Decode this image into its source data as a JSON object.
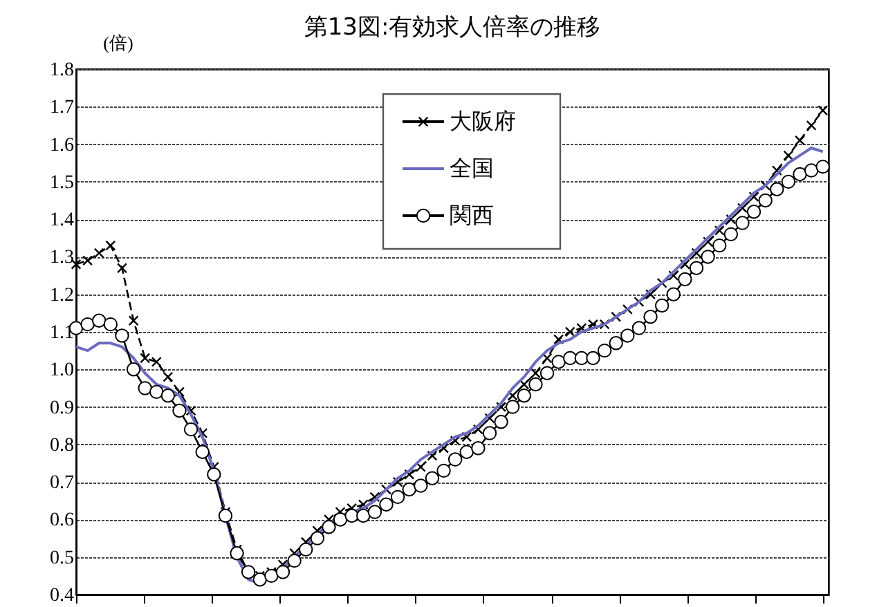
{
  "chart_data": {
    "type": "line",
    "title": "第13図:有効求人倍率の推移",
    "ylabel": "(倍)",
    "categories": [
      null,
      null,
      null,
      null,
      null,
      null,
      null,
      null,
      null,
      null,
      null,
      null,
      null,
      null,
      null,
      null,
      null,
      null,
      null,
      null,
      null,
      null,
      null,
      null,
      null,
      null,
      null,
      null,
      null,
      null,
      null,
      null,
      null,
      null,
      null,
      null,
      null,
      null,
      null,
      null,
      null,
      null,
      null,
      null,
      null,
      null,
      null,
      null,
      null,
      null,
      null,
      null,
      null,
      null,
      null,
      null,
      null,
      null,
      null,
      null,
      null,
      null,
      null,
      null,
      null,
      null
    ],
    "ylim": [
      0.4,
      1.8
    ],
    "yticks": [
      0.4,
      0.5,
      0.6,
      0.7,
      0.8,
      0.9,
      {
        "value": 1,
        "label": "1.0"
      },
      1.1,
      1.2,
      1.3,
      1.4,
      1.5,
      1.6,
      1.7,
      1.8
    ],
    "grid": "y",
    "legend": "top",
    "tick_labels": "y",
    "series": [
      {
        "name": "大阪府",
        "color": "#000000",
        "marker": "cross",
        "line_style": "dashed",
        "values": [
          1.28,
          1.29,
          1.31,
          1.33,
          1.27,
          1.13,
          1.03,
          1.02,
          0.98,
          0.94,
          0.89,
          0.83,
          0.74,
          0.62,
          0.52,
          0.46,
          0.45,
          0.46,
          0.48,
          0.51,
          0.54,
          0.57,
          0.6,
          0.62,
          0.63,
          0.64,
          0.66,
          0.68,
          0.7,
          0.72,
          0.74,
          0.77,
          0.79,
          0.81,
          0.82,
          0.84,
          0.87,
          0.9,
          0.93,
          0.96,
          0.99,
          1.03,
          1.08,
          1.1,
          1.11,
          1.12,
          1.12,
          1.14,
          1.16,
          1.18,
          1.2,
          1.23,
          1.25,
          1.28,
          1.31,
          1.34,
          1.37,
          1.4,
          1.43,
          1.46,
          1.49,
          1.53,
          1.57,
          1.61,
          1.65,
          1.69
        ]
      },
      {
        "name": "全国",
        "color": "#6b6bbf",
        "marker": "none",
        "line_style": "solid",
        "values": [
          1.06,
          1.05,
          1.07,
          1.07,
          1.06,
          1.03,
          0.99,
          0.96,
          0.95,
          0.93,
          0.88,
          0.82,
          0.73,
          0.61,
          0.5,
          0.44,
          0.43,
          0.45,
          0.47,
          0.5,
          0.53,
          0.56,
          0.59,
          0.61,
          0.62,
          0.63,
          0.65,
          0.68,
          0.71,
          0.73,
          0.76,
          0.78,
          0.8,
          0.82,
          0.83,
          0.85,
          0.88,
          0.91,
          0.95,
          0.98,
          1.02,
          1.05,
          1.07,
          1.08,
          1.1,
          1.11,
          1.12,
          1.14,
          1.16,
          1.18,
          1.21,
          1.23,
          1.26,
          1.29,
          1.32,
          1.35,
          1.38,
          1.41,
          1.44,
          1.47,
          1.49,
          1.52,
          1.55,
          1.57,
          1.59,
          1.58
        ]
      },
      {
        "name": "関西",
        "color": "#000000",
        "marker": "circle",
        "line_style": "solid",
        "values": [
          1.11,
          1.12,
          1.13,
          1.12,
          1.09,
          1.0,
          0.95,
          0.94,
          0.93,
          0.89,
          0.84,
          0.78,
          0.72,
          0.61,
          0.51,
          0.46,
          0.44,
          0.45,
          0.46,
          0.49,
          0.52,
          0.55,
          0.58,
          0.6,
          0.61,
          0.61,
          0.62,
          0.64,
          0.66,
          0.68,
          0.69,
          0.71,
          0.73,
          0.76,
          0.78,
          0.79,
          0.83,
          0.86,
          0.9,
          0.93,
          0.96,
          0.99,
          1.02,
          1.03,
          1.03,
          1.03,
          1.05,
          1.07,
          1.09,
          1.11,
          1.14,
          1.17,
          1.2,
          1.24,
          1.27,
          1.3,
          1.33,
          1.36,
          1.39,
          1.42,
          1.45,
          1.48,
          1.5,
          1.52,
          1.53,
          1.54
        ]
      }
    ]
  }
}
